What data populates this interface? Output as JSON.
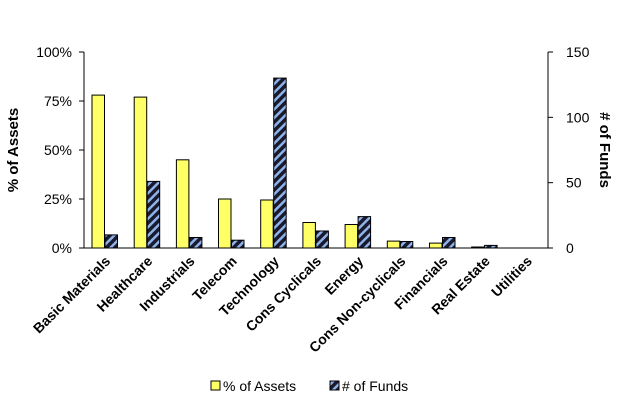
{
  "chart_data": {
    "type": "bar",
    "title": "",
    "categories": [
      "Basic Materials",
      "Healthcare",
      "Industrials",
      "Telecom",
      "Technology",
      "Cons Cyclicals",
      "Energy",
      "Cons Non-cyclicals",
      "Financials",
      "Real Estate",
      "Utilities"
    ],
    "series": [
      {
        "name": "% of Assets",
        "axis": "left",
        "color": "#ffff66",
        "values": [
          78,
          77,
          45,
          25,
          24.5,
          13,
          12,
          3.5,
          2.5,
          0.5,
          0
        ]
      },
      {
        "name": "# of Funds",
        "axis": "right",
        "color": "#1a1a2e",
        "hatch_color": "#8fb3e8",
        "values": [
          10,
          51,
          8,
          6,
          130,
          13,
          24,
          5,
          8,
          2,
          0
        ]
      }
    ],
    "y_left": {
      "label": "% of Assets",
      "range": [
        0,
        100
      ],
      "ticks": [
        0,
        25,
        50,
        75,
        100
      ],
      "tick_labels": [
        "0%",
        "25%",
        "50%",
        "75%",
        "100%"
      ]
    },
    "y_right": {
      "label": "# of Funds",
      "range": [
        0,
        150
      ],
      "ticks": [
        0,
        50,
        100,
        150
      ],
      "tick_labels": [
        "0",
        "50",
        "100",
        "150"
      ]
    },
    "grid": false,
    "legend_position": "bottom"
  }
}
